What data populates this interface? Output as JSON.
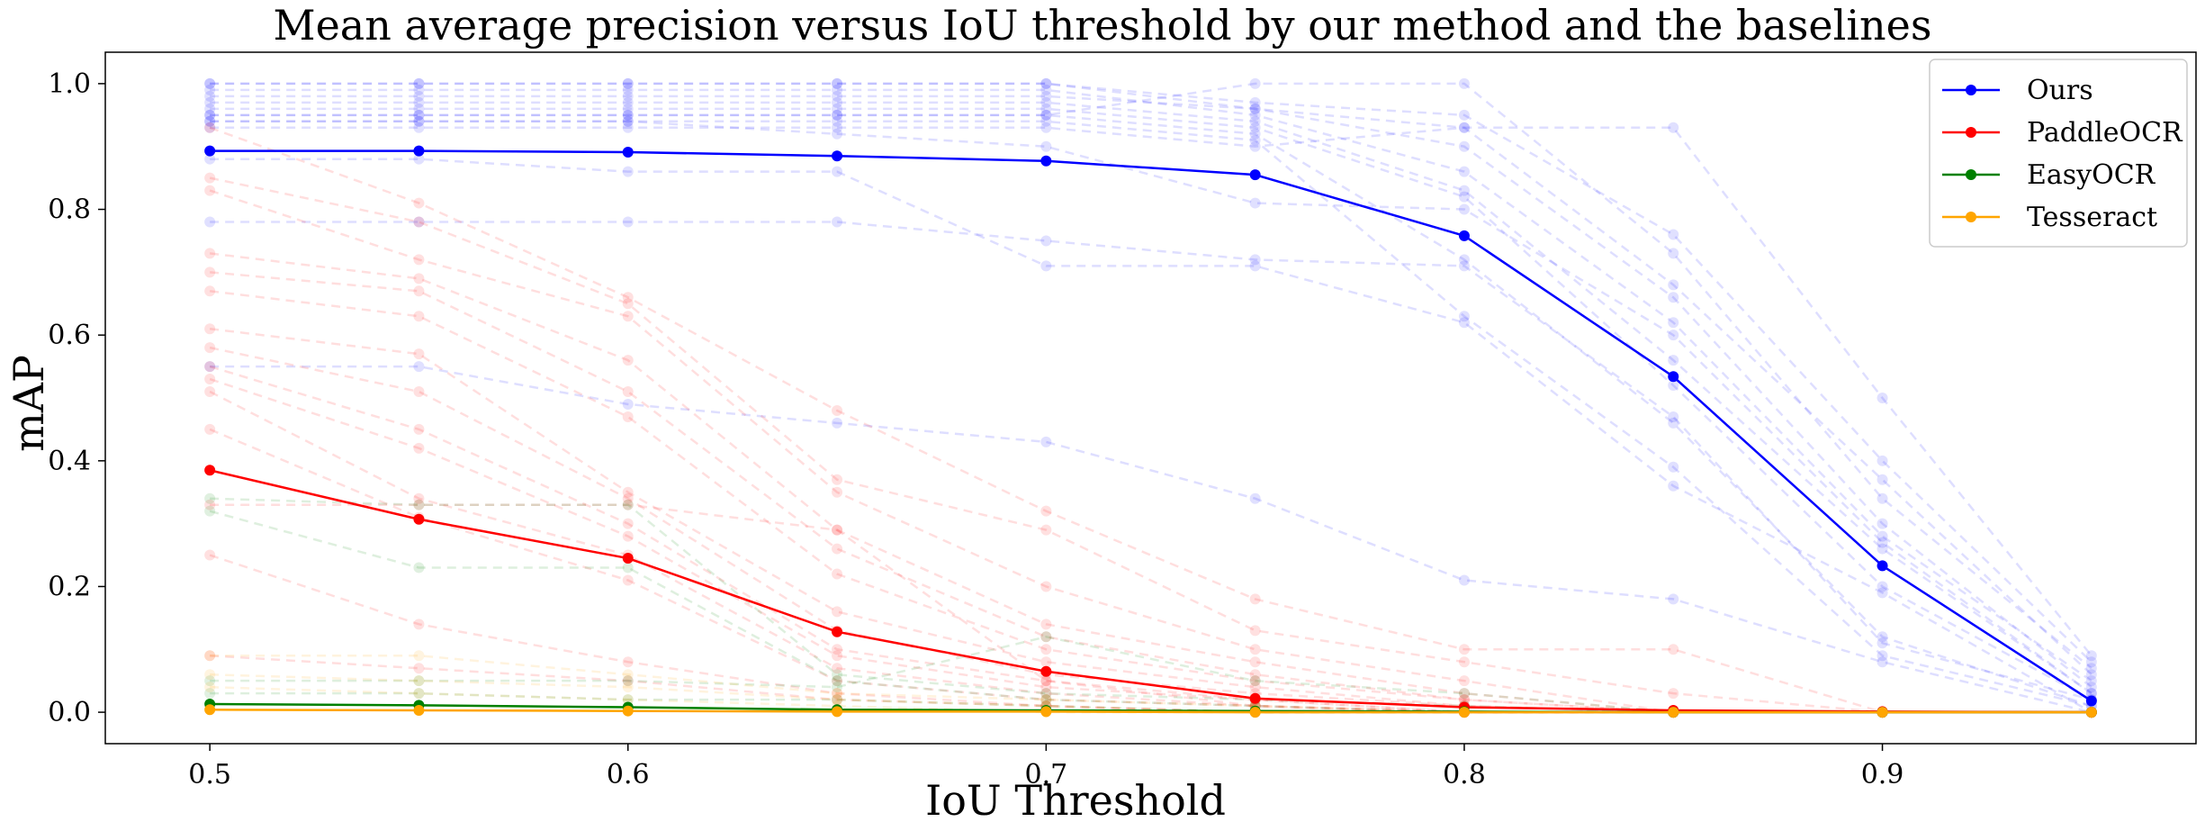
{
  "chart_data": {
    "type": "line",
    "title": "Mean average precision versus IoU threshold by our method and the baselines",
    "xlabel": "IoU Threshold",
    "ylabel": "mAP",
    "xlim": [
      0.475,
      0.975
    ],
    "ylim": [
      -0.05,
      1.05
    ],
    "x_ticks": [
      0.5,
      0.6,
      0.7,
      0.8,
      0.9
    ],
    "y_ticks": [
      0.0,
      0.2,
      0.4,
      0.6,
      0.8,
      1.0
    ],
    "x_tick_labels": [
      "0.5",
      "0.6",
      "0.7",
      "0.8",
      "0.9"
    ],
    "y_tick_labels": [
      "0.0",
      "0.2",
      "0.4",
      "0.6",
      "0.8",
      "1.0"
    ],
    "legend_position": "top-right",
    "grid": false,
    "x": [
      0.5,
      0.55,
      0.6,
      0.65,
      0.7,
      0.75,
      0.8,
      0.85,
      0.9,
      0.95
    ],
    "series": [
      {
        "name": "Ours",
        "color": "#0000ff",
        "values": [
          0.893,
          0.893,
          0.891,
          0.885,
          0.877,
          0.855,
          0.758,
          0.534,
          0.233,
          0.018
        ]
      },
      {
        "name": "PaddleOCR",
        "color": "#ff0000",
        "values": [
          0.385,
          0.307,
          0.245,
          0.128,
          0.065,
          0.022,
          0.008,
          0.003,
          0.001,
          0.0
        ]
      },
      {
        "name": "EasyOCR",
        "color": "#008000",
        "values": [
          0.013,
          0.011,
          0.008,
          0.004,
          0.003,
          0.002,
          0.001,
          0.0,
          0.0,
          0.0
        ]
      },
      {
        "name": "Tesseract",
        "color": "#ffa500",
        "values": [
          0.004,
          0.003,
          0.002,
          0.001,
          0.001,
          0.0,
          0.0,
          0.0,
          0.0,
          0.0
        ]
      }
    ],
    "background_runs": [
      {
        "color": "#0000ff",
        "values": [
          1.0,
          1.0,
          1.0,
          1.0,
          1.0,
          0.97,
          0.95,
          0.76,
          0.4,
          0.08
        ]
      },
      {
        "color": "#0000ff",
        "values": [
          1.0,
          1.0,
          1.0,
          1.0,
          1.0,
          0.96,
          0.93,
          0.68,
          0.37,
          0.06
        ]
      },
      {
        "color": "#0000ff",
        "values": [
          0.99,
          0.99,
          0.99,
          0.99,
          0.99,
          0.95,
          0.86,
          0.62,
          0.28,
          0.05
        ]
      },
      {
        "color": "#0000ff",
        "values": [
          0.98,
          0.98,
          0.98,
          0.98,
          0.98,
          0.96,
          0.9,
          0.66,
          0.3,
          0.04
        ]
      },
      {
        "color": "#0000ff",
        "values": [
          0.97,
          0.97,
          0.97,
          0.97,
          0.97,
          0.94,
          0.83,
          0.56,
          0.26,
          0.03
        ]
      },
      {
        "color": "#0000ff",
        "values": [
          0.96,
          0.96,
          0.96,
          0.96,
          0.96,
          0.93,
          0.82,
          0.52,
          0.2,
          0.02
        ]
      },
      {
        "color": "#0000ff",
        "values": [
          0.95,
          0.95,
          0.95,
          0.95,
          0.95,
          0.92,
          0.72,
          0.46,
          0.12,
          0.01
        ]
      },
      {
        "color": "#0000ff",
        "values": [
          0.94,
          0.94,
          0.94,
          0.94,
          0.94,
          0.91,
          0.63,
          0.39,
          0.09,
          0.01
        ]
      },
      {
        "color": "#0000ff",
        "values": [
          0.93,
          0.93,
          0.93,
          0.93,
          0.93,
          0.9,
          0.93,
          0.93,
          0.5,
          0.09
        ]
      },
      {
        "color": "#0000ff",
        "values": [
          0.95,
          0.95,
          0.95,
          0.95,
          0.95,
          1.0,
          1.0,
          0.73,
          0.34,
          0.07
        ]
      },
      {
        "color": "#0000ff",
        "values": [
          0.88,
          0.88,
          0.86,
          0.86,
          0.71,
          0.71,
          0.62,
          0.36,
          0.19,
          0.0
        ]
      },
      {
        "color": "#0000ff",
        "values": [
          0.78,
          0.78,
          0.78,
          0.78,
          0.75,
          0.72,
          0.71,
          0.47,
          0.11,
          0.02
        ]
      },
      {
        "color": "#0000ff",
        "values": [
          0.55,
          0.55,
          0.49,
          0.46,
          0.43,
          0.34,
          0.21,
          0.18,
          0.08,
          0.0
        ]
      },
      {
        "color": "#0000ff",
        "values": [
          0.94,
          0.94,
          0.94,
          0.92,
          0.9,
          0.81,
          0.8,
          0.6,
          0.27,
          0.03
        ]
      },
      {
        "color": "#ff0000",
        "values": [
          0.93,
          0.81,
          0.66,
          0.48,
          0.32,
          0.18,
          0.1,
          0.1,
          0.0,
          0.0
        ]
      },
      {
        "color": "#ff0000",
        "values": [
          0.85,
          0.78,
          0.65,
          0.37,
          0.29,
          0.13,
          0.08,
          0.03,
          0.0,
          0.0
        ]
      },
      {
        "color": "#ff0000",
        "values": [
          0.83,
          0.72,
          0.63,
          0.35,
          0.2,
          0.1,
          0.05,
          0.0,
          0.0,
          0.0
        ]
      },
      {
        "color": "#ff0000",
        "values": [
          0.73,
          0.69,
          0.56,
          0.29,
          0.14,
          0.08,
          0.03,
          0.0,
          0.0,
          0.0
        ]
      },
      {
        "color": "#ff0000",
        "values": [
          0.7,
          0.67,
          0.51,
          0.26,
          0.12,
          0.06,
          0.02,
          0.0,
          0.0,
          0.0
        ]
      },
      {
        "color": "#ff0000",
        "values": [
          0.67,
          0.63,
          0.47,
          0.22,
          0.1,
          0.05,
          0.02,
          0.0,
          0.0,
          0.0
        ]
      },
      {
        "color": "#ff0000",
        "values": [
          0.61,
          0.57,
          0.35,
          0.16,
          0.08,
          0.04,
          0.01,
          0.0,
          0.0,
          0.0
        ]
      },
      {
        "color": "#ff0000",
        "values": [
          0.58,
          0.51,
          0.34,
          0.13,
          0.06,
          0.03,
          0.01,
          0.0,
          0.0,
          0.0
        ]
      },
      {
        "color": "#ff0000",
        "values": [
          0.55,
          0.45,
          0.3,
          0.1,
          0.05,
          0.02,
          0.0,
          0.0,
          0.0,
          0.0
        ]
      },
      {
        "color": "#ff0000",
        "values": [
          0.53,
          0.42,
          0.28,
          0.09,
          0.04,
          0.02,
          0.0,
          0.0,
          0.0,
          0.0
        ]
      },
      {
        "color": "#ff0000",
        "values": [
          0.51,
          0.34,
          0.25,
          0.07,
          0.03,
          0.01,
          0.0,
          0.0,
          0.0,
          0.0
        ]
      },
      {
        "color": "#ff0000",
        "values": [
          0.45,
          0.31,
          0.21,
          0.05,
          0.02,
          0.01,
          0.0,
          0.0,
          0.0,
          0.0
        ]
      },
      {
        "color": "#ff0000",
        "values": [
          0.33,
          0.33,
          0.33,
          0.29,
          0.05,
          0.01,
          0.0,
          0.0,
          0.0,
          0.0
        ]
      },
      {
        "color": "#ff0000",
        "values": [
          0.25,
          0.14,
          0.08,
          0.03,
          0.01,
          0.0,
          0.0,
          0.0,
          0.0,
          0.0
        ]
      },
      {
        "color": "#ff0000",
        "values": [
          0.09,
          0.07,
          0.05,
          0.02,
          0.01,
          0.0,
          0.0,
          0.0,
          0.0,
          0.0
        ]
      },
      {
        "color": "#008000",
        "values": [
          0.34,
          0.33,
          0.33,
          0.06,
          0.03,
          0.02,
          0.01,
          0.0,
          0.0,
          0.0
        ]
      },
      {
        "color": "#008000",
        "values": [
          0.32,
          0.23,
          0.23,
          0.05,
          0.02,
          0.01,
          0.0,
          0.0,
          0.0,
          0.0
        ]
      },
      {
        "color": "#008000",
        "values": [
          0.05,
          0.05,
          0.05,
          0.04,
          0.12,
          0.05,
          0.03,
          0.0,
          0.0,
          0.0
        ]
      },
      {
        "color": "#008000",
        "values": [
          0.03,
          0.03,
          0.02,
          0.02,
          0.01,
          0.0,
          0.0,
          0.0,
          0.0,
          0.0
        ]
      },
      {
        "color": "#ffa500",
        "values": [
          0.09,
          0.09,
          0.06,
          0.03,
          0.02,
          0.01,
          0.0,
          0.0,
          0.0,
          0.0
        ]
      },
      {
        "color": "#ffa500",
        "values": [
          0.06,
          0.05,
          0.04,
          0.02,
          0.01,
          0.0,
          0.0,
          0.0,
          0.0,
          0.0
        ]
      },
      {
        "color": "#ffa500",
        "values": [
          0.04,
          0.03,
          0.02,
          0.01,
          0.0,
          0.0,
          0.0,
          0.0,
          0.0,
          0.0
        ]
      }
    ]
  }
}
